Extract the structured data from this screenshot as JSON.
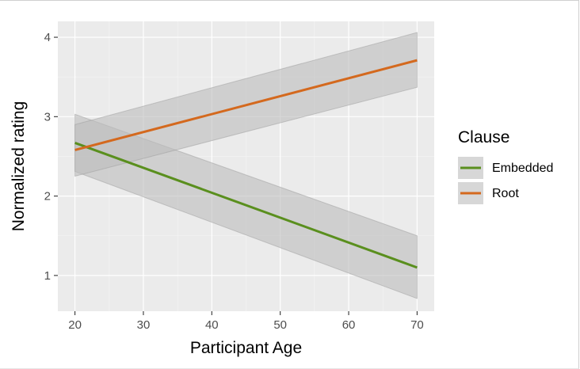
{
  "chart_data": {
    "type": "line",
    "xlabel": "Participant Age",
    "ylabel": "Normalized rating",
    "xlim": [
      17.5,
      72.5
    ],
    "ylim": [
      0.55,
      4.2
    ],
    "x_ticks": [
      20,
      30,
      40,
      50,
      60,
      70
    ],
    "y_ticks": [
      1,
      2,
      3,
      4
    ],
    "x": [
      20,
      70
    ],
    "grid": true,
    "legend": {
      "title": "Clause",
      "placement": "right"
    },
    "series": [
      {
        "name": "Embedded",
        "color": "#5a8f1e",
        "values": [
          2.67,
          1.1
        ],
        "ci_low": [
          2.31,
          0.71
        ],
        "ci_high": [
          3.03,
          1.5
        ]
      },
      {
        "name": "Root",
        "color": "#d4691e",
        "values": [
          2.58,
          3.71
        ],
        "ci_low": [
          2.25,
          3.37
        ],
        "ci_high": [
          2.9,
          4.06
        ]
      }
    ],
    "ci_fill": "#bdbdbd",
    "panel_bg": "#ebebeb"
  }
}
